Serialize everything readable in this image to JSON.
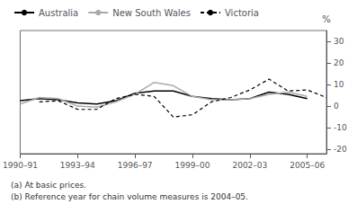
{
  "chart_data": {
    "type": "line",
    "categories": [
      "1990–91",
      null,
      null,
      "1993–94",
      null,
      null,
      "1996–97",
      null,
      null,
      "1999–00",
      null,
      null,
      "2002–03",
      null,
      null,
      "2005–06",
      null
    ],
    "series": [
      {
        "name": "Australia",
        "color": "#000000",
        "line_style": "solid",
        "values": [
          2.5,
          3.5,
          3.0,
          1.5,
          1.0,
          2.5,
          6.0,
          7.0,
          7.0,
          4.5,
          3.5,
          3.0,
          3.5,
          6.5,
          5.5,
          3.5,
          null
        ]
      },
      {
        "name": "New South Wales",
        "color": "#aaaaaa",
        "line_style": "solid",
        "values": [
          1.0,
          4.0,
          3.5,
          0.0,
          -0.5,
          2.0,
          5.5,
          11.0,
          9.5,
          4.5,
          3.0,
          3.0,
          3.5,
          5.5,
          6.5,
          4.5,
          null
        ]
      },
      {
        "name": "Victoria",
        "color": "#000000",
        "line_style": "dashed",
        "values": [
          null,
          2.0,
          2.5,
          -1.5,
          -1.5,
          3.5,
          5.5,
          4.5,
          -5.0,
          -4.0,
          2.0,
          4.0,
          7.5,
          12.5,
          7.0,
          7.5,
          4.0
        ]
      }
    ],
    "y_label": "%",
    "ylim": [
      -22,
      35
    ],
    "yticks": [
      -20,
      -10,
      0,
      10,
      20,
      30
    ],
    "grid": false,
    "legend": "upper left",
    "annotations": [
      "(a) At basic prices.",
      "(b) Reference year for chain volume measures is 2004–05."
    ]
  }
}
